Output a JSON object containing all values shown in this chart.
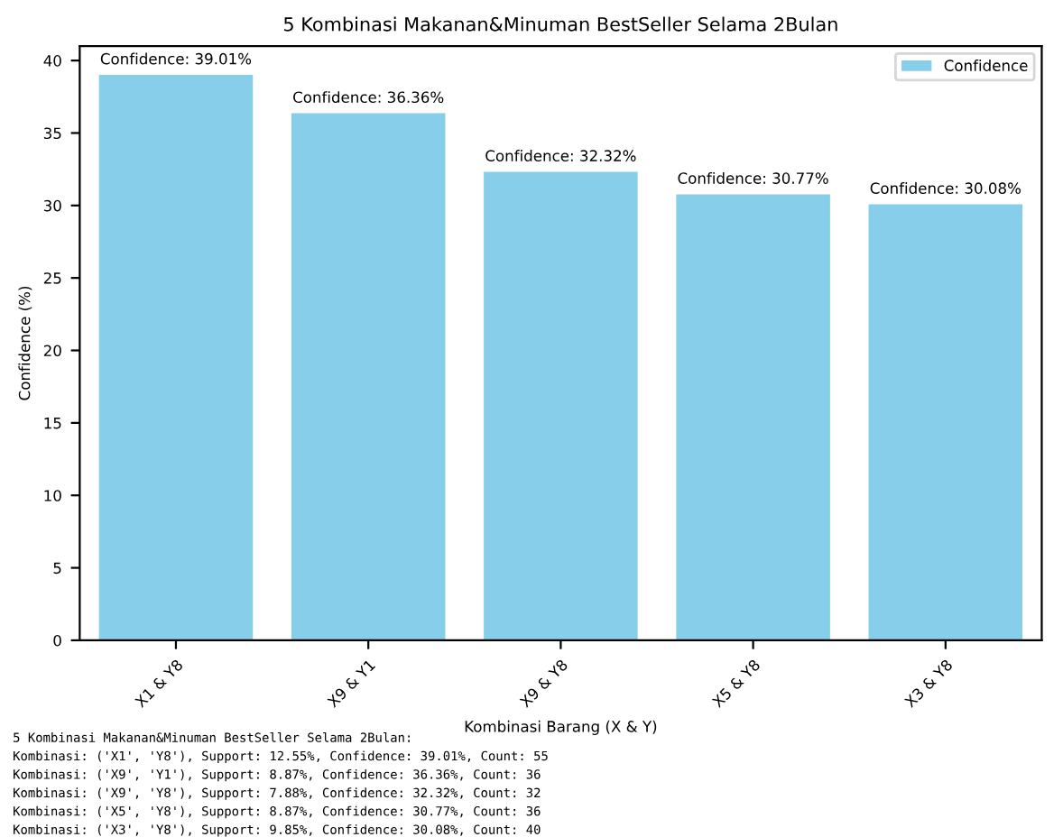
{
  "chart_data": {
    "type": "bar",
    "title": "5 Kombinasi Makanan&Minuman BestSeller Selama 2Bulan",
    "xlabel": "Kombinasi Barang (X & Y)",
    "ylabel": "Confidence (%)",
    "categories": [
      "X1 & Y8",
      "X9 & Y1",
      "X9 & Y8",
      "X5 & Y8",
      "X3 & Y8"
    ],
    "series": [
      {
        "name": "Confidence",
        "color": "#87ceeb",
        "values": [
          39.01,
          36.36,
          32.32,
          30.77,
          30.08
        ],
        "value_labels": [
          "Confidence: 39.01%",
          "Confidence: 36.36%",
          "Confidence: 32.32%",
          "Confidence: 30.77%",
          "Confidence: 30.08%"
        ]
      }
    ],
    "ylim": [
      0,
      41
    ],
    "yticks": [
      0,
      5,
      10,
      15,
      20,
      25,
      30,
      35,
      40
    ],
    "legend": "top right",
    "grid": false,
    "annotations": [
      "5 Kombinasi Makanan&Minuman BestSeller Selama 2Bulan:",
      "Kombinasi: ('X1', 'Y8'), Support: 12.55%, Confidence: 39.01%, Count: 55",
      "Kombinasi: ('X9', 'Y1'), Support: 8.87%, Confidence: 36.36%, Count: 36",
      "Kombinasi: ('X9', 'Y8'), Support: 7.88%, Confidence: 32.32%, Count: 32",
      "Kombinasi: ('X5', 'Y8'), Support: 8.87%, Confidence: 30.77%, Count: 36",
      "Kombinasi: ('X3', 'Y8'), Support: 9.85%, Confidence: 30.08%, Count: 40"
    ]
  }
}
